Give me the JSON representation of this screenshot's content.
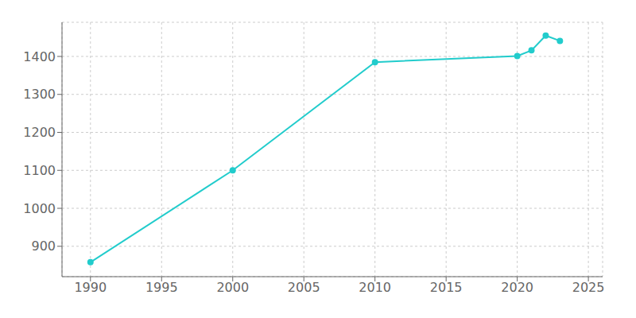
{
  "chart_data": {
    "type": "line",
    "x": [
      1990,
      2000,
      2010,
      2020,
      2021,
      2022,
      2023
    ],
    "values": [
      858,
      1100,
      1385,
      1401,
      1416,
      1455,
      1441
    ],
    "color": "#22CCCC",
    "marker": "circle",
    "xlim": [
      1988,
      2026
    ],
    "ylim": [
      820,
      1490
    ],
    "xticks": [
      1990,
      1995,
      2000,
      2005,
      2010,
      2015,
      2020,
      2025
    ],
    "yticks": [
      900,
      1000,
      1100,
      1200,
      1300,
      1400
    ],
    "grid": true
  }
}
